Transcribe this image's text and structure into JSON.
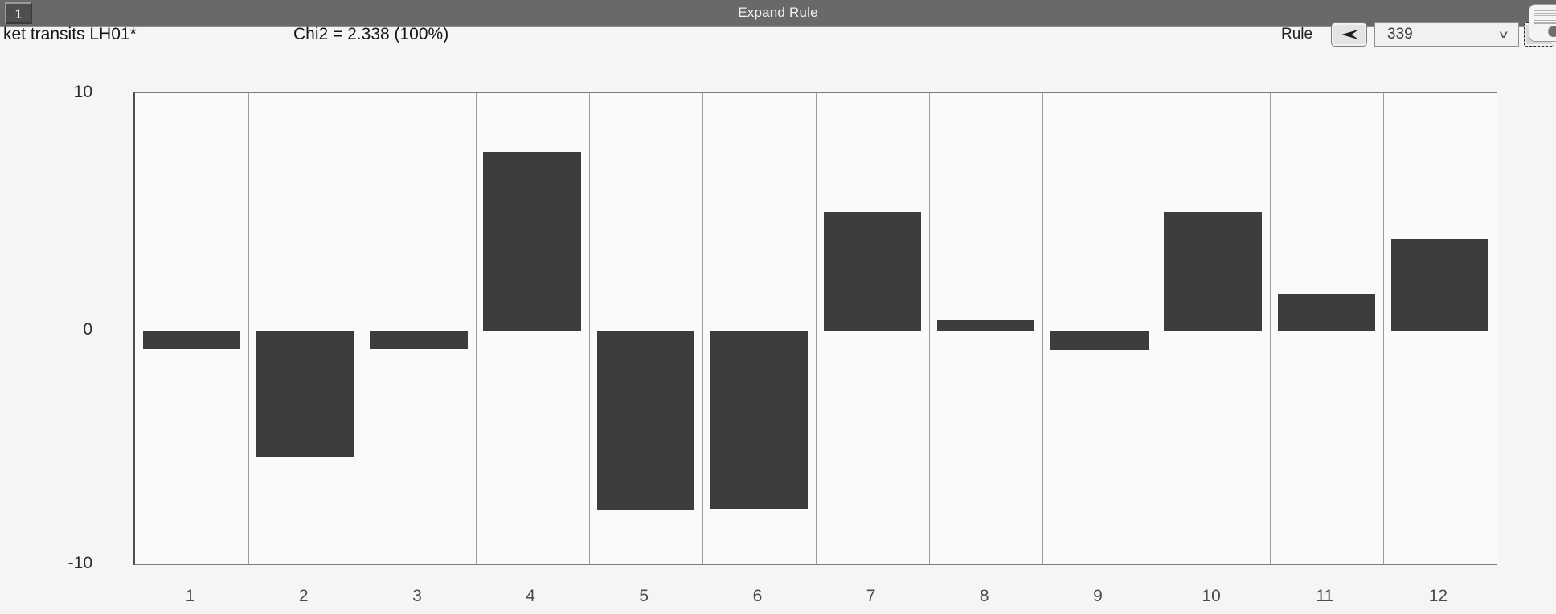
{
  "window": {
    "title": "Expand Rule",
    "index_button_label": "1"
  },
  "header": {
    "dataset_label": "ket transits LH01*",
    "chi2_label": "Chi2 = 2.338 (100%)"
  },
  "rule_controls": {
    "label": "Rule",
    "prev_icon": "dart-left-icon",
    "next_icon": "dart-right-icon",
    "selected_value": "339",
    "chevron": "∨"
  },
  "chart_data": {
    "type": "bar",
    "categories": [
      "1",
      "2",
      "3",
      "4",
      "5",
      "6",
      "7",
      "8",
      "9",
      "10",
      "11",
      "12"
    ],
    "values": [
      -0.75,
      -5.4,
      -0.75,
      7.5,
      -7.65,
      -7.6,
      5.0,
      0.45,
      -0.8,
      5.0,
      1.55,
      3.85
    ],
    "title": "",
    "xlabel": "",
    "ylabel": "",
    "ylim": [
      -10,
      10
    ],
    "yticks": [
      10,
      0,
      -10
    ],
    "grid": "vertical-column-separators",
    "legend": "none",
    "bar_color": "#3d3d3d"
  },
  "colors": {
    "titlebar_bg": "#696969",
    "page_bg": "#f5f5f3",
    "plot_bg": "#fafaf8",
    "bar": "#3d3d3d",
    "gridline": "#9e9e9e"
  }
}
